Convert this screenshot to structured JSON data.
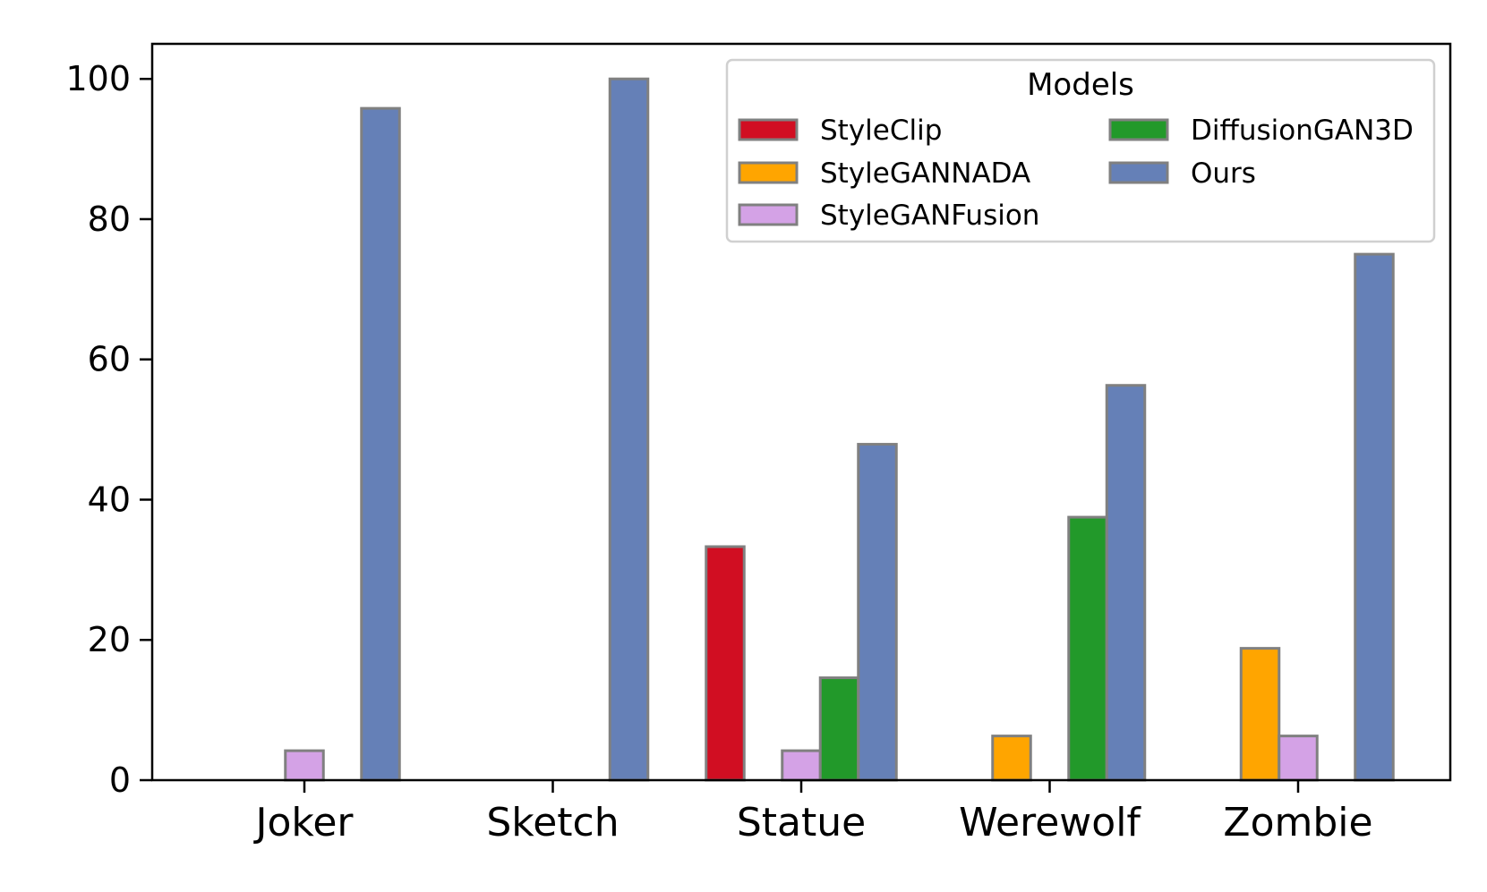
{
  "chart_data": {
    "type": "bar",
    "categories": [
      "Joker",
      "Sketch",
      "Statue",
      "Werewolf",
      "Zombie"
    ],
    "series": [
      {
        "name": "StyleClip",
        "color": "#d10e22",
        "values": [
          0,
          0,
          33.3,
          0,
          0
        ]
      },
      {
        "name": "StyleGANNADA",
        "color": "#ffa500",
        "values": [
          0,
          0,
          0,
          6.3,
          18.8
        ]
      },
      {
        "name": "StyleGANFusion",
        "color": "#d4a2e6",
        "values": [
          4.2,
          0,
          4.2,
          0,
          6.3
        ]
      },
      {
        "name": "DiffusionGAN3D",
        "color": "#22992a",
        "values": [
          0,
          0,
          14.6,
          37.5,
          0
        ]
      },
      {
        "name": "Ours",
        "color": "#6580b7",
        "values": [
          95.8,
          100,
          47.9,
          56.3,
          75
        ]
      }
    ],
    "ylim": [
      0,
      105
    ],
    "yticks": [
      "0",
      "20",
      "40",
      "60",
      "80",
      "100"
    ],
    "legend": {
      "title": "Models",
      "placement": "top-right",
      "columns": 2
    },
    "bar_edge_color": "#808080",
    "grid": false
  }
}
